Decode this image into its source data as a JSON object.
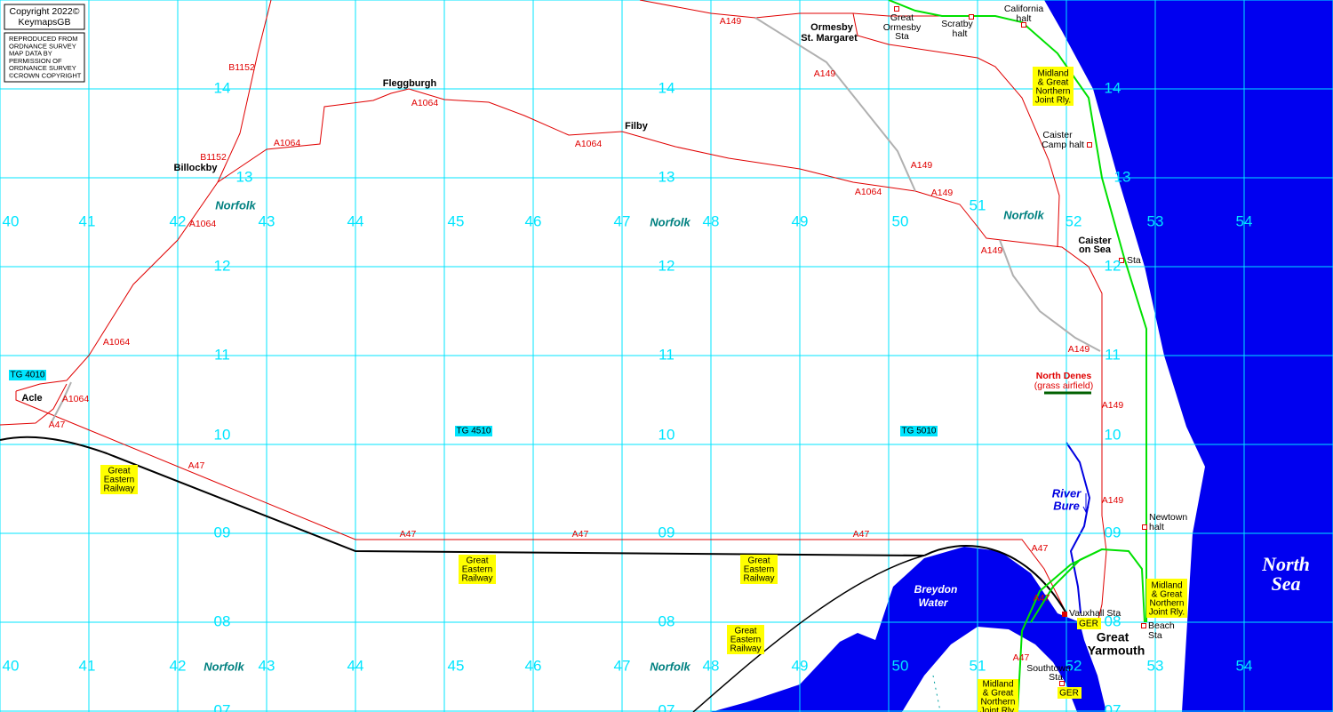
{
  "copyright": [
    "Copyright 2022©",
    "KeymapsGB"
  ],
  "notice": [
    "REPRODUCED FROM",
    "ORDNANCE SURVEY",
    "MAP DATA BY",
    "PERMISSION OF",
    "ORDNANCE SURVEY",
    "©CROWN COPYRIGHT"
  ],
  "eastings": [
    "40",
    "41",
    "42",
    "43",
    "44",
    "45",
    "46",
    "47",
    "48",
    "49",
    "50",
    "51",
    "52",
    "53",
    "54"
  ],
  "northings": [
    "07",
    "08",
    "09",
    "10",
    "11",
    "12",
    "13",
    "14"
  ],
  "grid_refs": [
    "TG 4010",
    "TG 4510",
    "TG 5010"
  ],
  "county": "Norfolk",
  "places": {
    "fleggburgh": "Fleggburgh",
    "filby": "Filby",
    "billockby": "Billockby",
    "acle": "Acle",
    "ormesby": [
      "Ormesby",
      "St. Margaret"
    ],
    "caister": [
      "Caister",
      "on Sea"
    ],
    "yarmouth": [
      "Great",
      "Yarmouth"
    ]
  },
  "roads": {
    "a47": "A47",
    "a149": "A149",
    "a1064": "A1064",
    "b1152": "B1152"
  },
  "stations": {
    "great_ormesby": [
      "Great",
      "Ormesby",
      "Sta"
    ],
    "scratby": [
      "Scratby",
      "halt"
    ],
    "california": [
      "California",
      "halt"
    ],
    "caister_camp": [
      "Caister",
      "Camp halt"
    ],
    "caister": "Sta",
    "newtown": [
      "Newtown",
      "halt"
    ],
    "vauxhall": "Vauxhall Sta",
    "beach": [
      "Beach",
      "Sta"
    ],
    "southtown": [
      "Southtown",
      "Sta"
    ]
  },
  "railways": {
    "mgn": [
      "Midland",
      "& Great",
      "Northern",
      "Joint Rly."
    ],
    "ger": [
      "Great",
      "Eastern",
      "Railway"
    ],
    "ger_short": "GER"
  },
  "water": {
    "breydon": [
      "Breydon",
      "Water"
    ],
    "bure": [
      "River",
      "Bure"
    ],
    "sea": [
      "North",
      "Sea"
    ]
  },
  "airfield": [
    "North Denes",
    "(grass airfield)"
  ]
}
